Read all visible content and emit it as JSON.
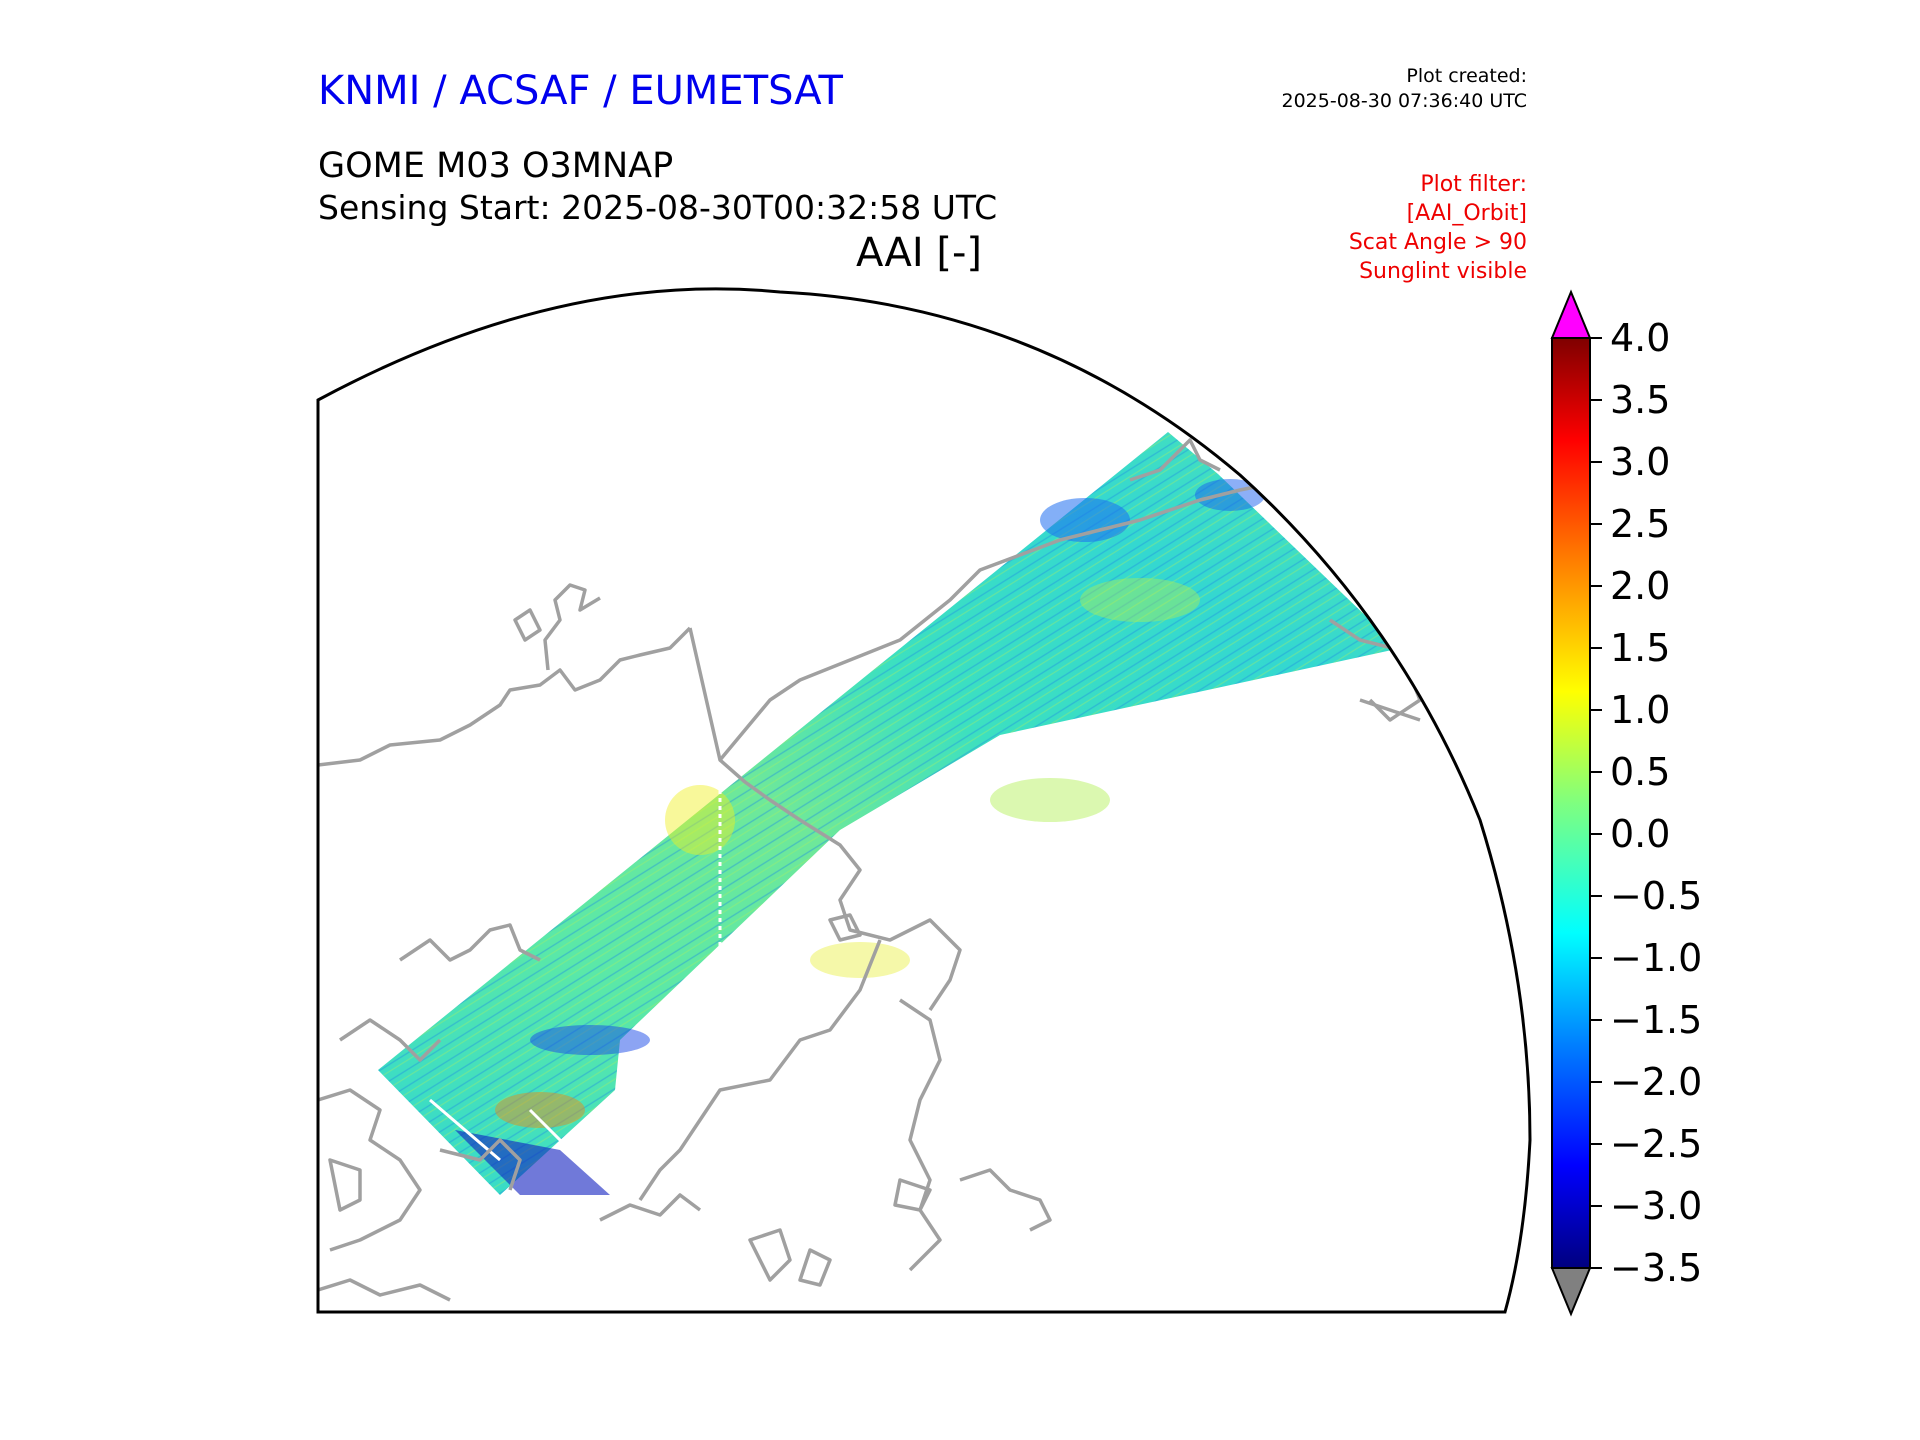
{
  "header": {
    "organisation": "KNMI / ACSAF / EUMETSAT",
    "plot_created_label": "Plot created:",
    "plot_created_time": "2025-08-30 07:36:40 UTC",
    "product": "GOME M03 O3MNAP",
    "sensing_start": "Sensing Start: 2025-08-30T00:32:58 UTC",
    "quantity": "AAI [-]"
  },
  "filters": {
    "title": "Plot filter:",
    "items": [
      "[AAI_Orbit]",
      "Scat Angle > 90",
      "Sunglint visible"
    ]
  },
  "colorbar": {
    "min": -3.5,
    "max": 4.0,
    "ticks": [
      "4.0",
      "3.5",
      "3.0",
      "2.5",
      "2.0",
      "1.5",
      "1.0",
      "0.5",
      "0.0",
      "−0.5",
      "−1.0",
      "−1.5",
      "−2.0",
      "−2.5",
      "−3.0",
      "−3.5"
    ],
    "tick_values": [
      4.0,
      3.5,
      3.0,
      2.5,
      2.0,
      1.5,
      1.0,
      0.5,
      0.0,
      -0.5,
      -1.0,
      -1.5,
      -2.0,
      -2.5,
      -3.0,
      -3.5
    ],
    "over_color": "#ff00ff",
    "under_color": "#808080",
    "colormap": "jet"
  },
  "map": {
    "projection": "polar stereographic (north)",
    "coastline_color": "#a0a0a0",
    "boundary_color": "#000000"
  }
}
